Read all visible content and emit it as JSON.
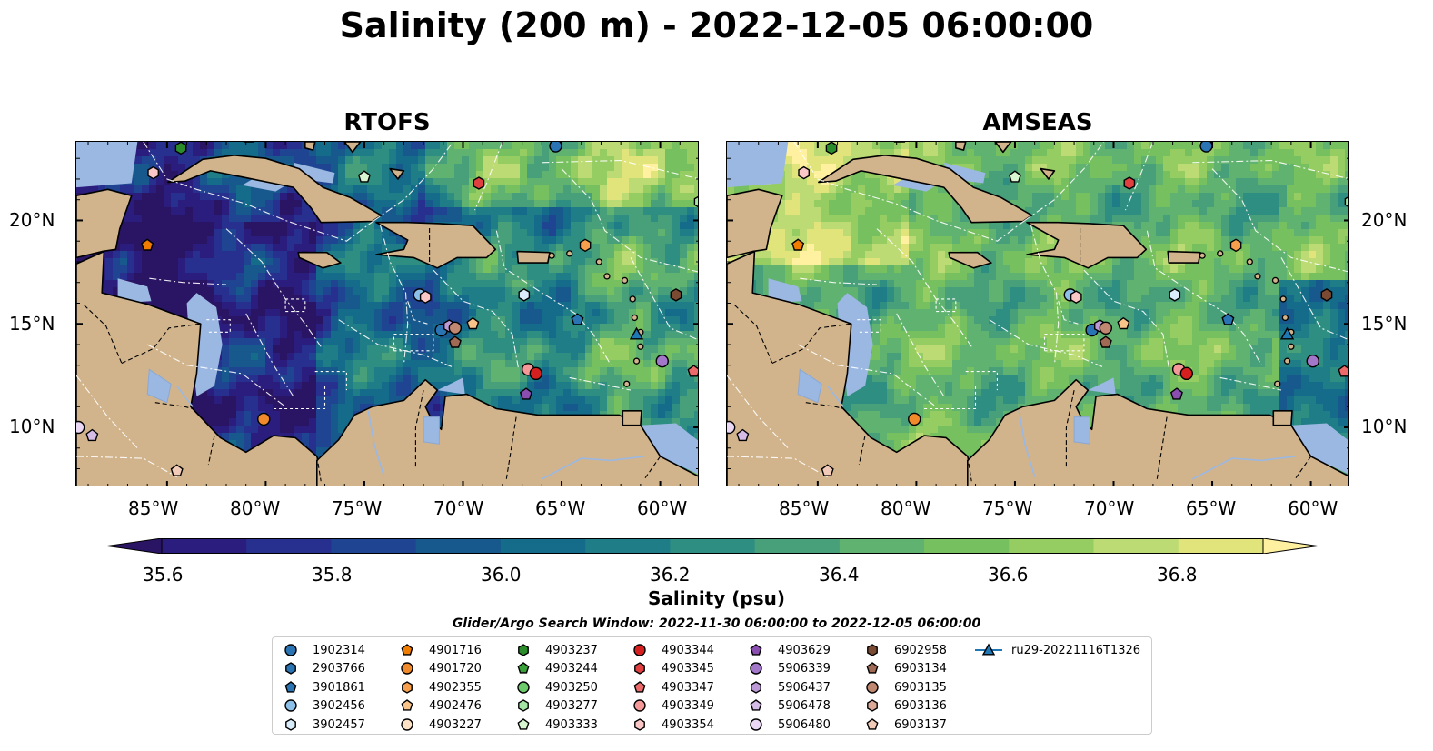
{
  "title": "Salinity (200 m) - 2022-12-05 06:00:00",
  "panels": [
    {
      "title": "RTOFS",
      "colormap_theme": "fresh-dominant (blue)"
    },
    {
      "title": "AMSEAS",
      "colormap_theme": "salty-dominant (green)"
    }
  ],
  "lat_labels": [
    "20°N",
    "15°N",
    "10°N"
  ],
  "lon_labels": [
    "85°W",
    "80°W",
    "75°W",
    "70°W",
    "65°W",
    "60°W"
  ],
  "colorbar": {
    "label": "Salinity (psu)",
    "ticks": [
      "35.6",
      "35.8",
      "36.0",
      "36.2",
      "36.4",
      "36.6",
      "36.8"
    ],
    "range": [
      35.5,
      36.9
    ],
    "colors": [
      "#2a1464",
      "#2b1d7d",
      "#27308f",
      "#1f4592",
      "#17598d",
      "#146b8a",
      "#1e7d86",
      "#2f8e82",
      "#48a07b",
      "#5fb26f",
      "#77c060",
      "#96cd62",
      "#bcdb74",
      "#e0e47a",
      "#fff1a0"
    ]
  },
  "colors": {
    "land": "#d2b48c",
    "shallow": "#9bb8e2",
    "coast": "#000000"
  },
  "search_window": "Glider/Argo Search Window: 2022-11-30 06:00:00 to 2022-12-05 06:00:00",
  "legend": [
    {
      "label": "1902314",
      "shape": "circle",
      "color": "#2a74b4"
    },
    {
      "label": "2903766",
      "shape": "hexagon",
      "color": "#2a74b4"
    },
    {
      "label": "3901861",
      "shape": "pentagon",
      "color": "#2a74b4"
    },
    {
      "label": "3902456",
      "shape": "circle",
      "color": "#8cc0e8"
    },
    {
      "label": "3902457",
      "shape": "hexagon",
      "color": "#d8ecfa"
    },
    {
      "label": "4901716",
      "shape": "pentagon",
      "color": "#f07d00"
    },
    {
      "label": "4901720",
      "shape": "circle",
      "color": "#f08a2a"
    },
    {
      "label": "4902355",
      "shape": "hexagon",
      "color": "#f6a04e"
    },
    {
      "label": "4902476",
      "shape": "pentagon",
      "color": "#f9c48a"
    },
    {
      "label": "4903227",
      "shape": "circle",
      "color": "#fde2c6"
    },
    {
      "label": "4903237",
      "shape": "hexagon",
      "color": "#2a8c2a"
    },
    {
      "label": "4903244",
      "shape": "pentagon",
      "color": "#3aa03a"
    },
    {
      "label": "4903250",
      "shape": "circle",
      "color": "#6ccc6c"
    },
    {
      "label": "4903277",
      "shape": "hexagon",
      "color": "#a4e4a4"
    },
    {
      "label": "4903333",
      "shape": "pentagon",
      "color": "#d8f6d0"
    },
    {
      "label": "4903344",
      "shape": "circle",
      "color": "#d62020"
    },
    {
      "label": "4903345",
      "shape": "hexagon",
      "color": "#e04040"
    },
    {
      "label": "4903347",
      "shape": "pentagon",
      "color": "#ec6a6a"
    },
    {
      "label": "4903349",
      "shape": "circle",
      "color": "#f49898"
    },
    {
      "label": "4903354",
      "shape": "hexagon",
      "color": "#fac6c6"
    },
    {
      "label": "4903629",
      "shape": "pentagon",
      "color": "#8a4eb0"
    },
    {
      "label": "5906339",
      "shape": "circle",
      "color": "#a276c8"
    },
    {
      "label": "5906437",
      "shape": "hexagon",
      "color": "#bc9ad8"
    },
    {
      "label": "5906478",
      "shape": "pentagon",
      "color": "#d4bce6"
    },
    {
      "label": "5906480",
      "shape": "circle",
      "color": "#ead8f4"
    },
    {
      "label": "6902958",
      "shape": "hexagon",
      "color": "#7a4a32"
    },
    {
      "label": "6903134",
      "shape": "pentagon",
      "color": "#a06a54"
    },
    {
      "label": "6903135",
      "shape": "circle",
      "color": "#c08870"
    },
    {
      "label": "6903136",
      "shape": "hexagon",
      "color": "#dca898"
    },
    {
      "label": "6903137",
      "shape": "pentagon",
      "color": "#f2cab8"
    },
    {
      "label": "ru29-20221116T1326",
      "shape": "triangle-line",
      "color": "#1f77b4"
    }
  ],
  "markers": [
    {
      "id": "1902314",
      "lon": -65.3,
      "lat": 23.6
    },
    {
      "id": "4903237",
      "lon": -84.3,
      "lat": 23.5
    },
    {
      "id": "4903354",
      "lon": -85.7,
      "lat": 22.3
    },
    {
      "id": "4903333",
      "lon": -75.0,
      "lat": 22.1
    },
    {
      "id": "4903345",
      "lon": -69.2,
      "lat": 21.8
    },
    {
      "id": "4903277",
      "lon": -58.0,
      "lat": 20.9
    },
    {
      "id": "4901716",
      "lon": -86.0,
      "lat": 18.8
    },
    {
      "id": "4902355",
      "lon": -63.8,
      "lat": 18.8
    },
    {
      "id": "3902456",
      "lon": -72.2,
      "lat": 16.4
    },
    {
      "id": "4903354",
      "lon": -71.9,
      "lat": 16.3
    },
    {
      "id": "3902457",
      "lon": -66.9,
      "lat": 16.4
    },
    {
      "id": "6902958",
      "lon": -59.2,
      "lat": 16.4
    },
    {
      "id": "3901861",
      "lon": -64.2,
      "lat": 15.2
    },
    {
      "id": "4902476",
      "lon": -69.5,
      "lat": 15.0
    },
    {
      "id": "1902314",
      "lon": -71.1,
      "lat": 14.7
    },
    {
      "id": "5906437",
      "lon": -70.7,
      "lat": 14.9
    },
    {
      "id": "6903135",
      "lon": -70.4,
      "lat": 14.8
    },
    {
      "id": "6903134",
      "lon": -70.4,
      "lat": 14.1
    },
    {
      "id": "ru29-20221116T1326",
      "lon": -61.2,
      "lat": 14.5
    },
    {
      "id": "5906339",
      "lon": -59.9,
      "lat": 13.2
    },
    {
      "id": "4903349",
      "lon": -66.7,
      "lat": 12.8
    },
    {
      "id": "4903344",
      "lon": -66.3,
      "lat": 12.6
    },
    {
      "id": "4903347",
      "lon": -58.3,
      "lat": 12.7
    },
    {
      "id": "4903629",
      "lon": -66.8,
      "lat": 11.6
    },
    {
      "id": "4901720",
      "lon": -80.1,
      "lat": 10.4
    },
    {
      "id": "5906480",
      "lon": -89.5,
      "lat": 10.0
    },
    {
      "id": "5906478",
      "lon": -88.8,
      "lat": 9.6
    },
    {
      "id": "6903137",
      "lon": -84.5,
      "lat": 7.9
    }
  ]
}
